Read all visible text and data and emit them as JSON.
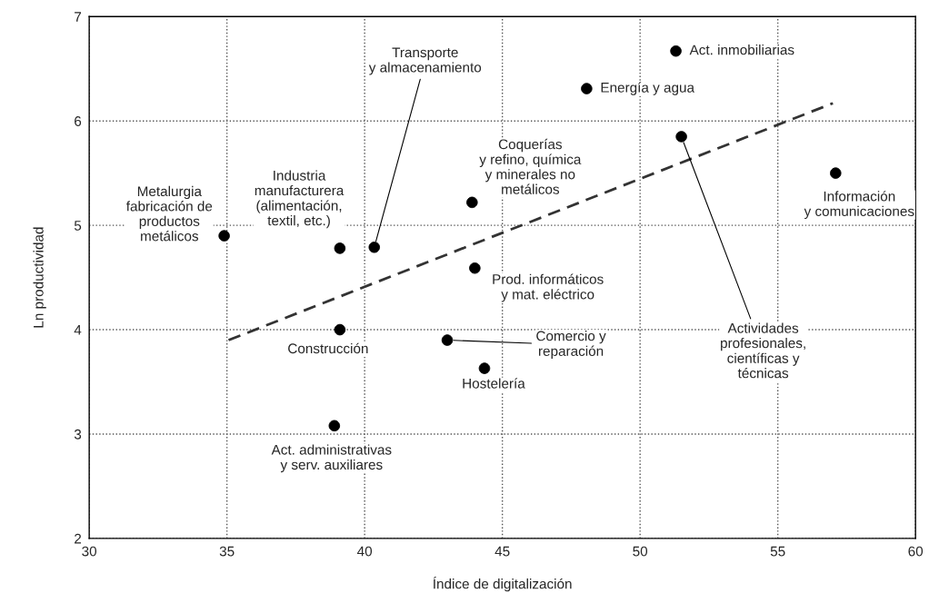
{
  "chart_data": {
    "type": "scatter",
    "xlabel": "Índice de digitalización",
    "ylabel": "Ln productividad",
    "xlim": [
      30,
      60
    ],
    "xticks": [
      30,
      35,
      40,
      45,
      50,
      55,
      60
    ],
    "ylim": [
      2,
      7
    ],
    "yticks": [
      2,
      3,
      4,
      5,
      6,
      7
    ],
    "grid": true,
    "marker": "circle",
    "series": [
      {
        "color": "#000000",
        "x": [
          34.9,
          39.1,
          40.35,
          39.1,
          38.9,
          43.9,
          44.0,
          43.0,
          44.35,
          48.06,
          51.3,
          51.5,
          57.1
        ],
        "values": [
          4.9,
          4.78,
          4.79,
          4.0,
          3.08,
          5.22,
          4.59,
          3.9,
          3.63,
          6.31,
          6.67,
          5.85,
          5.5
        ]
      },
      {
        "type": "line",
        "marker": "none",
        "color": "#333333",
        "line_style": "dashed",
        "x": [
          35.06,
          57.0
        ],
        "values": [
          3.9,
          6.17
        ]
      }
    ],
    "annotations": [
      "Metalurgia\nfabricación de\nproductos\nmetálicos",
      "Industria\nmanufacturera\n(alimentación,\ntextil, etc.)",
      {
        "text": "Transporte\ny almacenamiento",
        "x": 40.35,
        "y": 4.79
      },
      {
        "text": "Construcción",
        "x": 39.1,
        "y": 4.0
      },
      {
        "text": "Act. administrativas\ny serv. auxiliares",
        "x": 38.9,
        "y": 3.08
      },
      {
        "text": "Coquerías\ny refino, química\ny minerales no\nmetálicos",
        "x": 43.9,
        "y": 5.22
      },
      "Prod. informáticos\ny mat. eléctrico",
      {
        "text": "Comercio y\nreparación",
        "x": 43.0,
        "y": 3.9
      },
      {
        "text": "Hostelería",
        "x": 44.35,
        "y": 3.63
      },
      {
        "text": "Energía y agua",
        "x": 48.06,
        "y": 6.31
      },
      {
        "text": "Act. inmobiliarias",
        "x": 51.3,
        "y": 6.67
      },
      {
        "text": "Actividades\nprofesionales,\ncientíficas y\ntécnicas",
        "x": 51.5,
        "y": 5.85
      },
      {
        "text": "Información\ny comunicaciones",
        "x": 57.1,
        "y": 5.5
      }
    ]
  }
}
